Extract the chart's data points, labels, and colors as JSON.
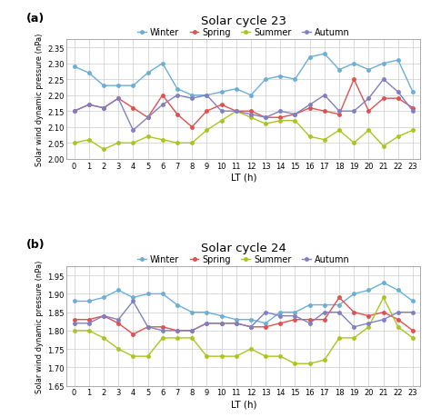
{
  "title_a": "Solar cycle 23",
  "title_b": "Solar cycle 24",
  "label_a": "(a)",
  "label_b": "(b)",
  "xlabel": "LT (h)",
  "ylabel": "Solar wind dynamic pressure (nPa)",
  "x": [
    0,
    1,
    2,
    3,
    4,
    5,
    6,
    7,
    8,
    9,
    10,
    11,
    12,
    13,
    14,
    15,
    16,
    17,
    18,
    19,
    20,
    21,
    22,
    23
  ],
  "cycle23": {
    "Winter": [
      2.29,
      2.27,
      2.23,
      2.23,
      2.23,
      2.27,
      2.3,
      2.22,
      2.2,
      2.2,
      2.21,
      2.22,
      2.2,
      2.25,
      2.26,
      2.25,
      2.32,
      2.33,
      2.28,
      2.3,
      2.28,
      2.3,
      2.31,
      2.21
    ],
    "Spring": [
      2.15,
      2.17,
      2.16,
      2.19,
      2.16,
      2.13,
      2.2,
      2.14,
      2.1,
      2.15,
      2.17,
      2.15,
      2.15,
      2.13,
      2.13,
      2.14,
      2.16,
      2.15,
      2.14,
      2.25,
      2.15,
      2.19,
      2.19,
      2.16
    ],
    "Summer": [
      2.05,
      2.06,
      2.03,
      2.05,
      2.05,
      2.07,
      2.06,
      2.05,
      2.05,
      2.09,
      2.12,
      2.15,
      2.13,
      2.11,
      2.12,
      2.12,
      2.07,
      2.06,
      2.09,
      2.05,
      2.09,
      2.04,
      2.07,
      2.09
    ],
    "Autumn": [
      2.15,
      2.17,
      2.16,
      2.19,
      2.09,
      2.13,
      2.17,
      2.2,
      2.19,
      2.2,
      2.15,
      2.15,
      2.14,
      2.13,
      2.15,
      2.14,
      2.17,
      2.2,
      2.15,
      2.15,
      2.19,
      2.25,
      2.21,
      2.15
    ]
  },
  "cycle24": {
    "Winter": [
      1.88,
      1.88,
      1.89,
      1.91,
      1.89,
      1.9,
      1.9,
      1.87,
      1.85,
      1.85,
      1.84,
      1.83,
      1.83,
      1.82,
      1.85,
      1.85,
      1.87,
      1.87,
      1.87,
      1.9,
      1.91,
      1.93,
      1.91,
      1.88
    ],
    "Spring": [
      1.83,
      1.83,
      1.84,
      1.82,
      1.79,
      1.81,
      1.81,
      1.8,
      1.8,
      1.82,
      1.82,
      1.82,
      1.81,
      1.81,
      1.82,
      1.83,
      1.83,
      1.83,
      1.89,
      1.85,
      1.84,
      1.85,
      1.83,
      1.8
    ],
    "Summer": [
      1.8,
      1.8,
      1.78,
      1.75,
      1.73,
      1.73,
      1.78,
      1.78,
      1.78,
      1.73,
      1.73,
      1.73,
      1.75,
      1.73,
      1.73,
      1.71,
      1.71,
      1.72,
      1.78,
      1.78,
      1.81,
      1.89,
      1.81,
      1.78
    ],
    "Autumn": [
      1.82,
      1.82,
      1.84,
      1.83,
      1.88,
      1.81,
      1.8,
      1.8,
      1.8,
      1.82,
      1.82,
      1.82,
      1.81,
      1.85,
      1.84,
      1.84,
      1.82,
      1.85,
      1.85,
      1.81,
      1.82,
      1.83,
      1.85,
      1.85
    ]
  },
  "colors": {
    "Winter": "#6baed6",
    "Spring": "#e05050",
    "Summer": "#aac520",
    "Autumn": "#8080c0"
  },
  "ylim_a": [
    2.0,
    2.375
  ],
  "ylim_b": [
    1.65,
    1.975
  ],
  "yticks_a": [
    2.0,
    2.05,
    2.1,
    2.15,
    2.2,
    2.25,
    2.3,
    2.35
  ],
  "yticks_b": [
    1.65,
    1.7,
    1.75,
    1.8,
    1.85,
    1.9,
    1.95
  ],
  "grid_color": "#cccccc",
  "marker": "o",
  "markersize": 2.5,
  "linewidth": 1.0
}
